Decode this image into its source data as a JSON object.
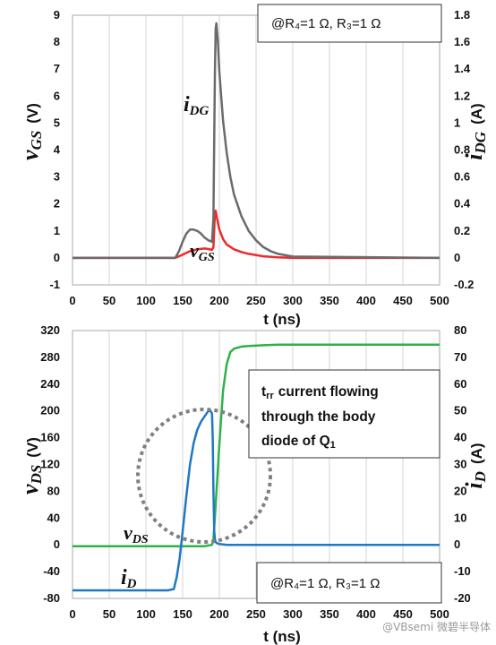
{
  "chart_data": [
    {
      "type": "line",
      "xlabel": "t (ns)",
      "xlim": [
        0,
        500
      ],
      "x_ticks": [
        0,
        50,
        100,
        150,
        200,
        250,
        300,
        350,
        400,
        450,
        500
      ],
      "ylabel_left": {
        "var": "v",
        "sub": "GS",
        "unit": "(V)"
      },
      "ylabel_right": {
        "var": "i",
        "sub": "DG",
        "unit": "(A)"
      },
      "ylim_left": [
        -1,
        9
      ],
      "ylim_right": [
        -0.2,
        1.8
      ],
      "y_ticks_left": [
        "-1",
        "0",
        "1",
        "2",
        "3",
        "4",
        "5",
        "6",
        "7",
        "8",
        "9"
      ],
      "y_ticks_right": [
        "-0.2",
        "0",
        "0.2",
        "0.4",
        "0.6",
        "0.8",
        "1",
        "1.2",
        "1.4",
        "1.6",
        "1.8"
      ],
      "grid": "vertical",
      "annotation": "@R₄=1 Ω, R₃=1 Ω",
      "series": [
        {
          "label_var": "v",
          "label_sub": "GS",
          "axis": "left",
          "color": "#ee2a2a",
          "x": [
            0,
            140,
            150,
            160,
            170,
            180,
            185,
            190,
            192,
            193,
            194,
            195,
            197,
            200,
            205,
            210,
            220,
            230,
            240,
            260,
            280,
            300,
            500
          ],
          "y": [
            0,
            0,
            0.12,
            0.25,
            0.32,
            0.35,
            0.33,
            0.3,
            0.4,
            1.1,
            1.7,
            1.75,
            1.45,
            1.05,
            0.7,
            0.5,
            0.32,
            0.22,
            0.15,
            0.06,
            0.02,
            0,
            0
          ]
        },
        {
          "label_var": "i",
          "label_sub": "DG",
          "axis": "right",
          "color": "#6b6b6b",
          "x": [
            0,
            140,
            145,
            150,
            155,
            160,
            165,
            170,
            175,
            180,
            185,
            190,
            192,
            193,
            194,
            195,
            196,
            198,
            200,
            205,
            210,
            215,
            220,
            230,
            240,
            250,
            260,
            270,
            280,
            300,
            500
          ],
          "y": [
            0,
            0,
            0.05,
            0.12,
            0.18,
            0.21,
            0.21,
            0.2,
            0.18,
            0.15,
            0.13,
            0.12,
            0.3,
            0.9,
            1.4,
            1.7,
            1.74,
            1.6,
            1.38,
            1.02,
            0.78,
            0.6,
            0.47,
            0.31,
            0.2,
            0.13,
            0.08,
            0.05,
            0.03,
            0.01,
            0
          ]
        }
      ]
    },
    {
      "type": "line",
      "xlabel": "t (ns)",
      "xlim": [
        0,
        500
      ],
      "x_ticks": [
        0,
        50,
        100,
        150,
        200,
        250,
        300,
        350,
        400,
        450,
        500
      ],
      "ylabel_left": {
        "var": "v",
        "sub": "DS",
        "unit": "(V)"
      },
      "ylabel_right": {
        "var": "i",
        "sub": "D",
        "unit": "(A)"
      },
      "ylim_left": [
        -80,
        320
      ],
      "ylim_right": [
        -20,
        80
      ],
      "y_ticks_left": [
        "-80",
        "-40",
        "0",
        "40",
        "80",
        "120",
        "160",
        "200",
        "240",
        "280",
        "320"
      ],
      "y_ticks_right": [
        "-20",
        "-10",
        "0",
        "10",
        "20",
        "30",
        "40",
        "50",
        "60",
        "70",
        "80"
      ],
      "grid": "vertical",
      "annotation": "@R₄=1 Ω, R₃=1 Ω",
      "callout": {
        "lines": [
          "current flowing",
          "through the body",
          "diode of Q"
        ],
        "prefix_var": "t",
        "prefix_sub": "rr",
        "suffix_sub": "1"
      },
      "series": [
        {
          "label_var": "v",
          "label_sub": "DS",
          "axis": "left",
          "color": "#2db24a",
          "x": [
            0,
            180,
            185,
            190,
            192,
            195,
            200,
            205,
            210,
            215,
            220,
            230,
            240,
            260,
            280,
            300,
            500
          ],
          "y": [
            -2,
            -2,
            -1,
            0,
            8,
            60,
            150,
            230,
            270,
            288,
            293,
            296,
            297,
            298,
            299,
            299,
            299
          ]
        },
        {
          "label_var": "i",
          "label_sub": "D",
          "axis": "right",
          "color": "#1f78c4",
          "x": [
            0,
            130,
            138,
            142,
            146,
            150,
            155,
            160,
            165,
            170,
            175,
            180,
            185,
            188,
            190,
            191,
            192,
            193,
            194,
            195,
            197,
            200,
            210,
            230,
            500
          ],
          "y": [
            -17,
            -17,
            -16.5,
            -12,
            -5,
            5,
            18,
            30,
            38,
            43,
            46,
            48,
            50,
            50,
            49,
            40,
            20,
            5,
            2,
            1,
            0.6,
            0.3,
            0,
            0,
            0
          ]
        }
      ]
    }
  ],
  "watermark": "@VBsemi 微碧半导体"
}
